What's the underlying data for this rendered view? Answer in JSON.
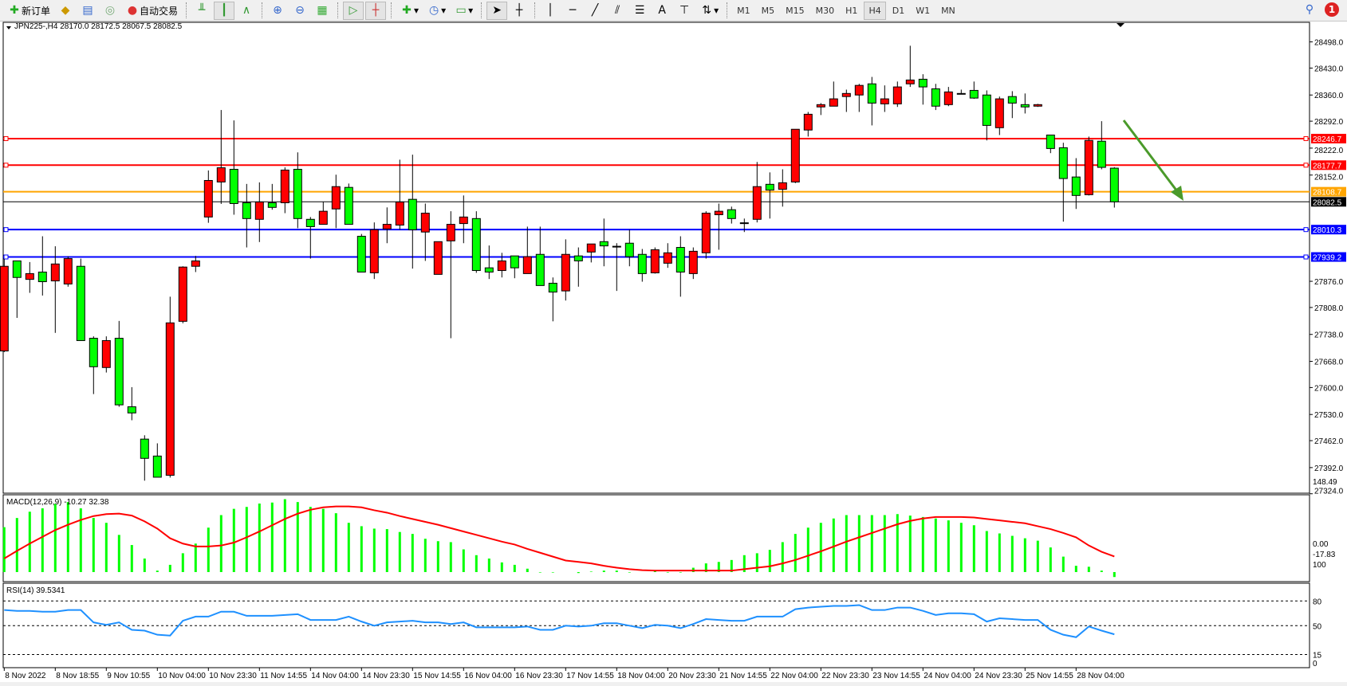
{
  "toolbar": {
    "new_order": "新订单",
    "auto_trading": "自动交易",
    "timeframes": [
      "M1",
      "M5",
      "M15",
      "M30",
      "H1",
      "H4",
      "D1",
      "W1",
      "MN"
    ],
    "active_timeframe": "H4",
    "text_tool": "A",
    "notification_count": "1"
  },
  "chart": {
    "header": "JPN225-,H4  28170.0 28172.5 28067.5 28082.5",
    "colors": {
      "bull_body": "#ff0000",
      "bear_body": "#00ff00",
      "wick": "#000000",
      "resistance": "#ff0000",
      "pivot": "#ffa500",
      "support": "#0000ff",
      "arrow": "#4a9a2a",
      "macd_hist": "#00ff00",
      "macd_signal": "#ff0000",
      "rsi": "#1e90ff"
    },
    "price_ticks": [
      "28498.0",
      "28430.0",
      "28360.0",
      "28292.0",
      "28222.0",
      "28152.0",
      "27876.0",
      "27808.0",
      "27738.0",
      "27668.0",
      "27600.0",
      "27530.0",
      "27462.0",
      "27392.0",
      "27324.0"
    ],
    "hlines": [
      {
        "label": "28246.7",
        "price": 28246.7,
        "type": "resistance"
      },
      {
        "label": "28177.7",
        "price": 28177.7,
        "type": "resistance"
      },
      {
        "label": "28108.7",
        "price": 28108.7,
        "type": "pivot"
      },
      {
        "label": "28082.5",
        "price": 28082.5,
        "type": "current"
      },
      {
        "label": "28010.3",
        "price": 28010.3,
        "type": "support"
      },
      {
        "label": "27939.2",
        "price": 27939.2,
        "type": "support"
      }
    ],
    "date_labels": [
      "8 Nov 2022",
      "8 Nov 18:55",
      "9 Nov 10:55",
      "10 Nov 04:00",
      "10 Nov 23:30",
      "11 Nov 14:55",
      "14 Nov 04:00",
      "14 Nov 23:30",
      "15 Nov 14:55",
      "16 Nov 04:00",
      "16 Nov 23:30",
      "17 Nov 14:55",
      "18 Nov 04:00",
      "20 Nov 23:30",
      "21 Nov 14:55",
      "22 Nov 04:00",
      "22 Nov 23:30",
      "23 Nov 14:55",
      "24 Nov 04:00",
      "24 Nov 23:30",
      "25 Nov 14:55",
      "28 Nov 04:00"
    ],
    "candles_ohlc": [
      [
        27695,
        27934,
        27692,
        27915
      ],
      [
        27929,
        27929,
        27781,
        27886
      ],
      [
        27881,
        27926,
        27846,
        27896
      ],
      [
        27900,
        27993,
        27839,
        27875
      ],
      [
        27877,
        27967,
        27742,
        27921
      ],
      [
        27869,
        27941,
        27862,
        27935
      ],
      [
        27915,
        27935,
        27722,
        27722
      ],
      [
        27728,
        27733,
        27583,
        27654
      ],
      [
        27652,
        27733,
        27639,
        27722
      ],
      [
        27728,
        27773,
        27550,
        27555
      ],
      [
        27550,
        27601,
        27515,
        27534
      ],
      [
        27466,
        27476,
        27358,
        27416
      ],
      [
        27422,
        27455,
        27367,
        27367
      ],
      [
        27372,
        27836,
        27366,
        27768
      ],
      [
        27772,
        27915,
        27767,
        27913
      ],
      [
        27915,
        27942,
        27900,
        27929
      ],
      [
        28043,
        28164,
        28028,
        28138
      ],
      [
        28134,
        28321,
        28077,
        28171
      ],
      [
        28167,
        28294,
        28049,
        28078
      ],
      [
        28080,
        28129,
        27964,
        28039
      ],
      [
        28037,
        28133,
        27978,
        28082
      ],
      [
        28080,
        28129,
        28062,
        28068
      ],
      [
        28080,
        28172,
        28053,
        28165
      ],
      [
        28167,
        28211,
        28014,
        28039
      ],
      [
        28037,
        28043,
        27935,
        28018
      ],
      [
        28024,
        28082,
        28024,
        28058
      ],
      [
        28064,
        28153,
        28014,
        28122
      ],
      [
        28120,
        28130,
        28024,
        28024
      ],
      [
        27993,
        27999,
        27900,
        27900
      ],
      [
        27898,
        28029,
        27882,
        28010
      ],
      [
        28012,
        28068,
        27975,
        28024
      ],
      [
        28022,
        28192,
        28010,
        28082
      ],
      [
        28089,
        28205,
        27909,
        28010
      ],
      [
        28004,
        28078,
        27929,
        28053
      ],
      [
        27894,
        27979,
        27894,
        27979
      ],
      [
        27981,
        28058,
        27728,
        28024
      ],
      [
        28026,
        28099,
        27975,
        28043
      ],
      [
        28039,
        28058,
        27898,
        27904
      ],
      [
        27911,
        27969,
        27882,
        27900
      ],
      [
        27904,
        27950,
        27886,
        27929
      ],
      [
        27942,
        27942,
        27884,
        27911
      ],
      [
        27896,
        28018,
        27896,
        27940
      ],
      [
        27946,
        28018,
        27865,
        27865
      ],
      [
        27871,
        27886,
        27772,
        27848
      ],
      [
        27851,
        27985,
        27826,
        27946
      ],
      [
        27942,
        27964,
        27862,
        27929
      ],
      [
        27952,
        27973,
        27925,
        27973
      ],
      [
        27979,
        28039,
        27915,
        27968
      ],
      [
        27967,
        27975,
        27851,
        27967
      ],
      [
        27975,
        28010,
        27915,
        27940
      ],
      [
        27946,
        27960,
        27875,
        27896
      ],
      [
        27898,
        27964,
        27896,
        27958
      ],
      [
        27923,
        27975,
        27911,
        27950
      ],
      [
        27964,
        27993,
        27836,
        27900
      ],
      [
        27896,
        27964,
        27882,
        27954
      ],
      [
        27950,
        28058,
        27935,
        28053
      ],
      [
        28049,
        28078,
        27958,
        28058
      ],
      [
        28062,
        28070,
        28026,
        28039
      ],
      [
        28028,
        28039,
        28004,
        28028
      ],
      [
        28037,
        28186,
        28029,
        28122
      ],
      [
        28128,
        28159,
        28039,
        28113
      ],
      [
        28115,
        28167,
        28070,
        28132
      ],
      [
        28134,
        28271,
        28131,
        28271
      ],
      [
        28269,
        28316,
        28252,
        28310
      ],
      [
        28329,
        28339,
        28308,
        28335
      ],
      [
        28331,
        28395,
        28331,
        28350
      ],
      [
        28356,
        28374,
        28316,
        28364
      ],
      [
        28360,
        28389,
        28316,
        28385
      ],
      [
        28389,
        28407,
        28281,
        28339
      ],
      [
        28337,
        28385,
        28316,
        28350
      ],
      [
        28337,
        28395,
        28329,
        28381
      ],
      [
        28389,
        28488,
        28381,
        28399
      ],
      [
        28401,
        28414,
        28335,
        28381
      ],
      [
        28376,
        28389,
        28321,
        28331
      ],
      [
        28335,
        28381,
        28331,
        28368
      ],
      [
        28364,
        28374,
        28364,
        28364
      ],
      [
        28372,
        28395,
        28350,
        28352
      ],
      [
        28360,
        28372,
        28242,
        28281
      ],
      [
        28275,
        28356,
        28256,
        28350
      ],
      [
        28356,
        28370,
        28300,
        28339
      ],
      [
        28335,
        28364,
        28312,
        28329
      ],
      [
        28331,
        28337,
        28329,
        28335
      ],
      [
        28256,
        28256,
        28209,
        28221
      ],
      [
        28223,
        28236,
        28031,
        28143
      ],
      [
        28147,
        28196,
        28064,
        28099
      ],
      [
        28101,
        28252,
        28099,
        28242
      ],
      [
        28240,
        28292,
        28167,
        28172
      ],
      [
        28170.0,
        28172.5,
        28067.5,
        28082.5
      ]
    ]
  },
  "macd": {
    "label": "MACD(12,26,9) -10.27 32.38",
    "scale_labels": [
      "148.49",
      "0.00",
      "-17.83"
    ],
    "histogram": [
      93,
      112,
      125,
      132,
      141,
      145,
      132,
      112,
      102,
      77,
      56,
      28,
      3,
      15,
      39,
      59,
      92,
      118,
      131,
      135,
      142,
      144,
      151,
      145,
      135,
      131,
      122,
      102,
      95,
      90,
      89,
      83,
      79,
      69,
      64,
      62,
      47,
      35,
      28,
      20,
      15,
      7,
      -1,
      -1,
      0,
      -2,
      1,
      3,
      3,
      -1,
      0,
      2,
      -1,
      -1,
      9,
      18,
      21,
      25,
      35,
      39,
      46,
      62,
      79,
      92,
      102,
      111,
      118,
      118,
      118,
      118,
      120,
      117,
      114,
      111,
      107,
      102,
      97,
      85,
      80,
      75,
      70,
      65,
      51,
      32,
      13,
      11,
      3,
      -10.27
    ],
    "signal": [
      28,
      44,
      59,
      73,
      87,
      98,
      108,
      116,
      120,
      121,
      117,
      105,
      90,
      70,
      59,
      53,
      53,
      55,
      61,
      72,
      84,
      97,
      110,
      121,
      129,
      134,
      136,
      136,
      134,
      128,
      123,
      116,
      110,
      104,
      98,
      91,
      84,
      77,
      70,
      63,
      57,
      48,
      40,
      32,
      24,
      21,
      18,
      13,
      9,
      6,
      4,
      3,
      3,
      3,
      3,
      3,
      3,
      3,
      6,
      9,
      12,
      18,
      25,
      34,
      43,
      53,
      63,
      72,
      81,
      90,
      99,
      106,
      111,
      114,
      114,
      114,
      113,
      110,
      107,
      104,
      101,
      95,
      89,
      81,
      72,
      55,
      42,
      32.38
    ]
  },
  "rsi": {
    "label": "RSI(14) 39.5341",
    "levels": [
      "100",
      "80",
      "50",
      "15",
      "0"
    ],
    "values": [
      69,
      68,
      68,
      67,
      67,
      69,
      69,
      54,
      51,
      54,
      45,
      44,
      39,
      38,
      56,
      61,
      61,
      67,
      67,
      62,
      62,
      62,
      63,
      64,
      57,
      57,
      57,
      61,
      55,
      50,
      54,
      55,
      56,
      54,
      54,
      52,
      54,
      48,
      48,
      48,
      48,
      49,
      45,
      45,
      50,
      49,
      50,
      53,
      53,
      50,
      47,
      51,
      50,
      47,
      52,
      58,
      57,
      56,
      56,
      61,
      61,
      61,
      70,
      72,
      73,
      74,
      74,
      75,
      69,
      69,
      72,
      72,
      68,
      63,
      65,
      65,
      64,
      55,
      59,
      58,
      57,
      57,
      45,
      39,
      36,
      49,
      44,
      39.5341
    ]
  }
}
